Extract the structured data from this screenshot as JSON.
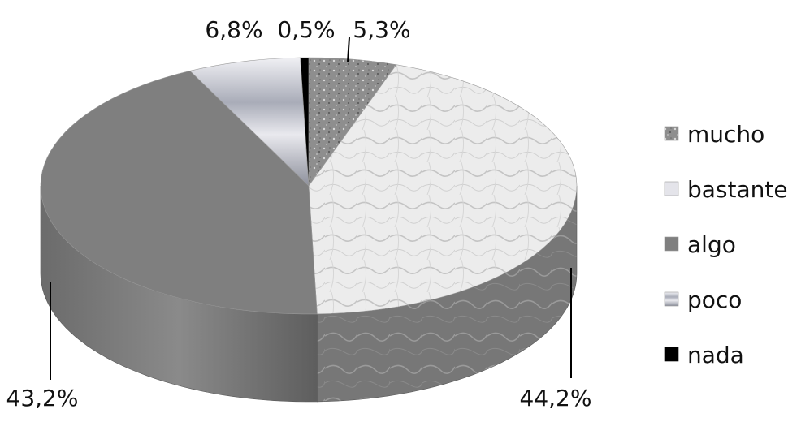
{
  "chart_data": {
    "type": "pie",
    "style": "3d",
    "categories": [
      "mucho",
      "bastante",
      "algo",
      "poco",
      "nada"
    ],
    "values": [
      5.3,
      44.2,
      43.2,
      6.8,
      0.5
    ],
    "data_labels": [
      "5,3%",
      "44,2%",
      "43,2%",
      "6,8%",
      "0,5%"
    ],
    "colors": [
      "#9a9a9a",
      "#e6e6e6",
      "#7f7f7f",
      "#b9bcc8",
      "#000000"
    ],
    "legend": {
      "position": "right",
      "entries": [
        "mucho",
        "bastante",
        "algo",
        "poco",
        "nada"
      ]
    }
  }
}
